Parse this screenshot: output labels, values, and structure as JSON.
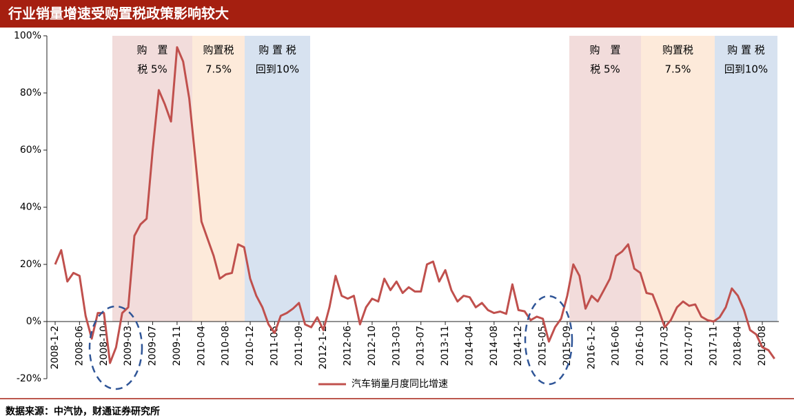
{
  "chart_data": {
    "type": "line",
    "title": "行业销量增速受购置税政策影响较大",
    "source": "数据来源：中汽协，财通证券研究所",
    "categories": [
      "2008-1-2",
      null,
      null,
      null,
      "2008-06",
      null,
      null,
      null,
      "2008-10",
      null,
      null,
      null,
      "2009-03",
      null,
      null,
      null,
      "2009-07",
      null,
      null,
      null,
      "2009-11",
      null,
      null,
      null,
      "2010-04",
      null,
      null,
      null,
      "2010-08",
      null,
      null,
      null,
      "2010-12",
      null,
      null,
      null,
      "2011-05",
      null,
      null,
      null,
      "2011-09",
      null,
      null,
      null,
      "2012-1-2",
      null,
      null,
      null,
      "2012-06",
      null,
      null,
      null,
      "2012-10",
      null,
      null,
      null,
      "2013-03",
      null,
      null,
      null,
      "2013-07",
      null,
      null,
      null,
      "2013-11",
      null,
      null,
      null,
      "2014-04",
      null,
      null,
      null,
      "2014-08",
      null,
      null,
      null,
      "2014-12",
      null,
      null,
      null,
      "2015-05",
      null,
      null,
      null,
      "2015-09",
      null,
      null,
      null,
      "2016-1-2",
      null,
      null,
      null,
      "2016-06",
      null,
      null,
      null,
      "2016-10",
      null,
      null,
      null,
      "2017-03",
      null,
      null,
      null,
      "2017-07",
      null,
      null,
      null,
      "2017-11",
      null,
      null,
      null,
      "2018-04",
      null,
      null,
      null,
      "2018-08",
      null,
      null
    ],
    "series": [
      {
        "name": "汽车销量月度同比增速",
        "color": "#c0504d",
        "values": [
          20,
          25,
          14,
          17,
          16,
          2,
          -6,
          3,
          3,
          -14.5,
          -9,
          3,
          5,
          30,
          34,
          36,
          60,
          81,
          76,
          70,
          96,
          91,
          78,
          57,
          35,
          29,
          23,
          15,
          16.5,
          17,
          27,
          26,
          15,
          9,
          5,
          -1,
          -4,
          2,
          3,
          4.5,
          6.5,
          -1,
          -2,
          1.5,
          -3,
          5,
          16,
          9,
          8,
          9,
          -1,
          5,
          8,
          7,
          15,
          11,
          14,
          10,
          12,
          10.5,
          10.5,
          20,
          21,
          14,
          18,
          11,
          7,
          9,
          8.5,
          5,
          6.5,
          4,
          3,
          3.5,
          2.7,
          13,
          4,
          3.6,
          0.5,
          1.7,
          1,
          -7,
          -2,
          1,
          9,
          20,
          16,
          4.5,
          9,
          7,
          11,
          15,
          23,
          24.5,
          27,
          18.5,
          17,
          10,
          9.5,
          4,
          -2,
          0.5,
          5,
          7,
          5.5,
          6,
          1.7,
          0.5,
          0,
          1.5,
          5,
          11.6,
          9,
          4,
          -3,
          -4.5,
          -9,
          -10,
          -13
        ]
      }
    ],
    "ylim": [
      -20,
      100
    ],
    "yticks": [
      {
        "value": -20,
        "label": "-20%"
      },
      {
        "value": 0,
        "label": "0%"
      },
      {
        "value": 20,
        "label": "20%"
      },
      {
        "value": 40,
        "label": "40%"
      },
      {
        "value": 60,
        "label": "60%"
      },
      {
        "value": 80,
        "label": "80%"
      },
      {
        "value": 100,
        "label": "100%"
      }
    ],
    "annotations": [
      {
        "lines": [
          "购　置",
          "税 5%"
        ]
      },
      {
        "lines": [
          "购置税",
          "7.5%"
        ]
      },
      {
        "lines": [
          "购 置 税",
          "回到10%"
        ]
      },
      {
        "lines": [
          "购　置",
          "税 5%"
        ]
      },
      {
        "lines": [
          "购置税",
          "7.5%"
        ]
      },
      {
        "lines": [
          "购 置 税",
          "回到10%"
        ]
      }
    ]
  }
}
